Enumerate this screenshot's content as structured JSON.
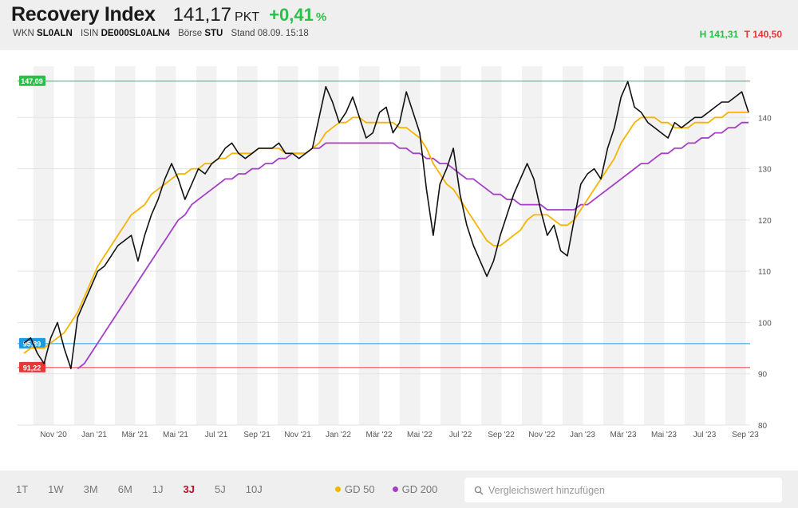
{
  "header": {
    "title": "Recovery Index",
    "price": "141,17",
    "unit": "PKT",
    "change": "+0,41",
    "change_unit": "%",
    "wkn_label": "WKN",
    "wkn": "SL0ALN",
    "isin_label": "ISIN",
    "isin": "DE000SL0ALN4",
    "boerse_label": "Börse",
    "boerse": "STU",
    "stand": "Stand 08.09. 15:18",
    "high": "H 141,31",
    "low": "T 140,50"
  },
  "colors": {
    "accent_up": "#2bbf4a",
    "accent_down": "#e53935",
    "active_range": "#b3122d",
    "gd50": "#f5b400",
    "gd200": "#a43fc7",
    "level_high": "#2bbf4a",
    "level_mid": "#1e9ae0",
    "level_low": "#e53935"
  },
  "footer": {
    "ranges": [
      "1T",
      "1W",
      "3M",
      "6M",
      "1J",
      "3J",
      "5J",
      "10J"
    ],
    "active_range": "3J",
    "legend": [
      {
        "label": "GD 50",
        "color": "#f5b400"
      },
      {
        "label": "GD 200",
        "color": "#a43fc7"
      }
    ],
    "search_placeholder": "Vergleichswert hinzufügen",
    "search_icon": "search-icon"
  },
  "chart_data": {
    "type": "line",
    "ylim": [
      80,
      150
    ],
    "yticks": [
      80,
      90,
      100,
      110,
      120,
      130,
      140
    ],
    "xlabels": [
      "Nov '20",
      "Jan '21",
      "Mär '21",
      "Mai '21",
      "Jul '21",
      "Sep '21",
      "Nov '21",
      "Jan '22",
      "Mär '22",
      "Mai '22",
      "Jul '22",
      "Sep '22",
      "Nov '22",
      "Jan '23",
      "Mär '23",
      "Mai '23",
      "Jul '23",
      "Sep '23"
    ],
    "levels": [
      {
        "label": "147,09",
        "value": 147.09,
        "color": "#2bbf4a"
      },
      {
        "label": "95,89",
        "value": 95.89,
        "color": "#1e9ae0"
      },
      {
        "label": "91,22",
        "value": 91.22,
        "color": "#e53935"
      }
    ],
    "series": [
      {
        "name": "Recovery Index",
        "color": "#111111",
        "values": [
          96,
          97,
          94,
          92,
          97,
          100,
          95,
          91,
          101,
          104,
          107,
          110,
          111,
          113,
          115,
          116,
          117,
          112,
          117,
          121,
          124,
          128,
          131,
          128,
          124,
          127,
          130,
          129,
          131,
          132,
          134,
          135,
          133,
          132,
          133,
          134,
          134,
          134,
          135,
          133,
          133,
          132,
          133,
          134,
          140,
          146,
          143,
          139,
          141,
          144,
          140,
          136,
          137,
          141,
          142,
          137,
          139,
          145,
          141,
          137,
          126,
          117,
          127,
          130,
          134,
          125,
          119,
          115,
          112,
          109,
          112,
          117,
          121,
          125,
          128,
          131,
          128,
          122,
          117,
          119,
          114,
          113,
          120,
          127,
          129,
          130,
          128,
          134,
          138,
          144,
          147,
          142,
          141,
          139,
          138,
          137,
          136,
          139,
          138,
          139,
          140,
          140,
          141,
          142,
          143,
          143,
          144,
          145,
          141
        ]
      },
      {
        "name": "GD 50",
        "color": "#f5b400",
        "values": [
          94,
          95,
          95,
          95,
          96,
          97,
          98,
          100,
          102,
          105,
          108,
          111,
          113,
          115,
          117,
          119,
          121,
          122,
          123,
          125,
          126,
          127,
          128,
          129,
          129,
          130,
          130,
          131,
          131,
          132,
          132,
          133,
          133,
          133,
          133,
          134,
          134,
          134,
          134,
          133,
          133,
          133,
          133,
          134,
          135,
          137,
          138,
          139,
          139,
          140,
          140,
          139,
          139,
          139,
          139,
          139,
          138,
          138,
          137,
          136,
          134,
          131,
          129,
          127,
          126,
          124,
          122,
          120,
          118,
          116,
          115,
          115,
          116,
          117,
          118,
          120,
          121,
          121,
          121,
          120,
          119,
          119,
          120,
          122,
          124,
          126,
          128,
          130,
          132,
          135,
          137,
          139,
          140,
          140,
          140,
          139,
          139,
          138,
          138,
          138,
          139,
          139,
          139,
          140,
          140,
          141,
          141,
          141,
          141
        ]
      },
      {
        "name": "GD 200",
        "color": "#a43fc7",
        "values": [
          null,
          null,
          null,
          null,
          null,
          null,
          null,
          null,
          91,
          92,
          94,
          96,
          98,
          100,
          102,
          104,
          106,
          108,
          110,
          112,
          114,
          116,
          118,
          120,
          121,
          123,
          124,
          125,
          126,
          127,
          128,
          128,
          129,
          129,
          130,
          130,
          131,
          131,
          132,
          132,
          133,
          133,
          133,
          134,
          134,
          135,
          135,
          135,
          135,
          135,
          135,
          135,
          135,
          135,
          135,
          135,
          134,
          134,
          133,
          133,
          132,
          132,
          131,
          131,
          130,
          129,
          128,
          128,
          127,
          126,
          125,
          125,
          124,
          124,
          123,
          123,
          123,
          123,
          122,
          122,
          122,
          122,
          122,
          123,
          123,
          124,
          125,
          126,
          127,
          128,
          129,
          130,
          131,
          131,
          132,
          133,
          133,
          134,
          134,
          135,
          135,
          136,
          136,
          137,
          137,
          138,
          138,
          139,
          139
        ]
      }
    ]
  }
}
